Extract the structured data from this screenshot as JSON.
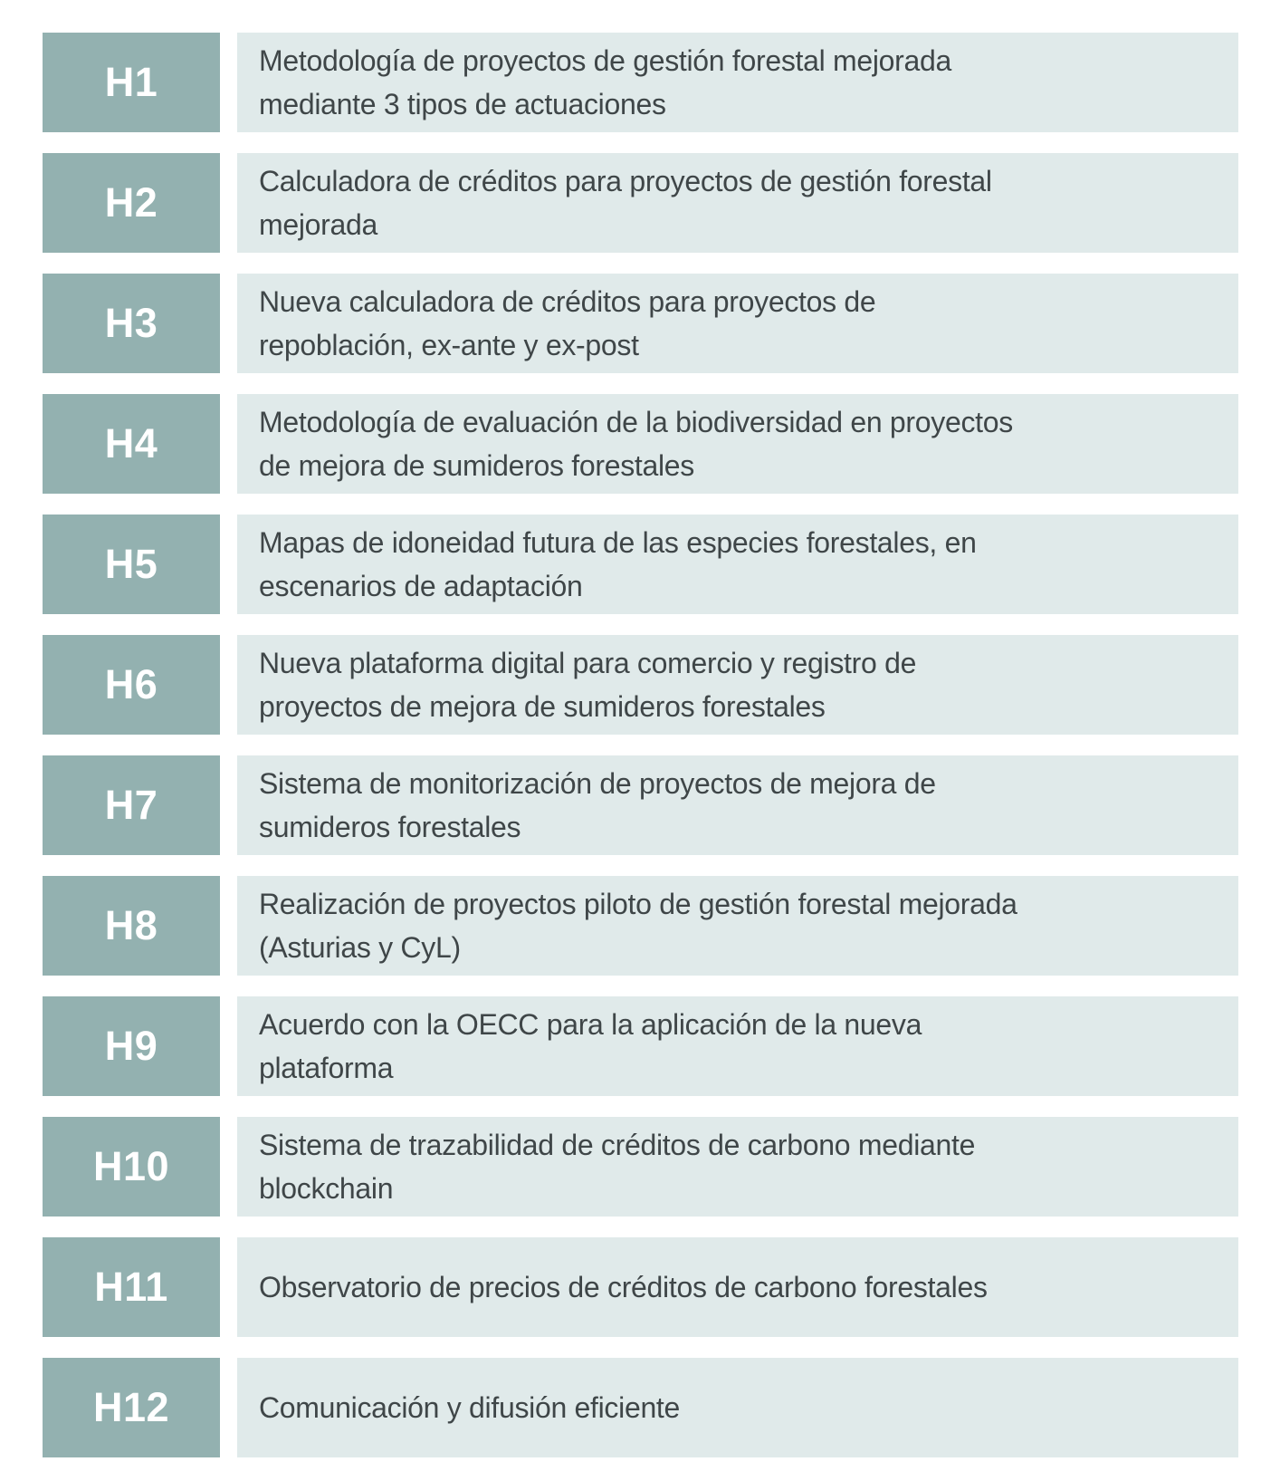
{
  "colors": {
    "badge_bg": "#93B1B0",
    "panel_bg": "#E0EAEA",
    "badge_text": "#FFFFFF",
    "body_text": "#3F4648",
    "page_bg": "#FFFFFF"
  },
  "table": {
    "rows": [
      {
        "code": "H1",
        "text": "Metodología de proyectos de gestión forestal mejorada\nmediante 3 tipos de actuaciones"
      },
      {
        "code": "H2",
        "text": "Calculadora de créditos para proyectos de gestión forestal\nmejorada"
      },
      {
        "code": "H3",
        "text": "Nueva calculadora de créditos para proyectos de\nrepoblación, ex-ante y ex-post"
      },
      {
        "code": "H4",
        "text": "Metodología de evaluación de la biodiversidad en proyectos\nde mejora de sumideros forestales"
      },
      {
        "code": "H5",
        "text": "Mapas de idoneidad futura de las especies forestales, en\nescenarios de adaptación"
      },
      {
        "code": "H6",
        "text": "Nueva plataforma digital para comercio y registro de\nproyectos de mejora de sumideros forestales"
      },
      {
        "code": "H7",
        "text": "Sistema de monitorización de proyectos de mejora de\nsumideros forestales"
      },
      {
        "code": "H8",
        "text": "Realización de proyectos piloto de gestión forestal mejorada\n(Asturias y CyL)"
      },
      {
        "code": "H9",
        "text": "Acuerdo con la OECC para la aplicación de la nueva\nplataforma"
      },
      {
        "code": "H10",
        "text": "Sistema de trazabilidad de créditos de carbono mediante\nblockchain"
      },
      {
        "code": "H11",
        "text": "Observatorio de precios de créditos de carbono forestales"
      },
      {
        "code": "H12",
        "text": "Comunicación y difusión eficiente"
      }
    ]
  }
}
